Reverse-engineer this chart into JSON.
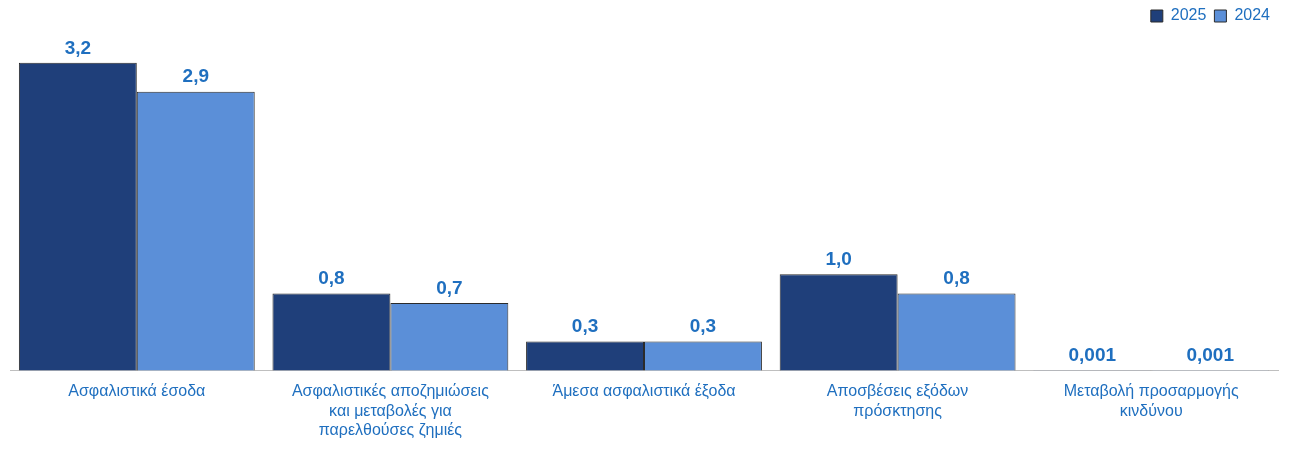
{
  "chart_data": {
    "type": "bar",
    "categories": [
      "Ασφαλιστικά έσοδα",
      "Ασφαλιστικές αποζημιώσεις και μεταβολές για παρελθούσες ζημιές",
      "Άμεσα ασφαλιστικά έξοδα",
      "Αποσβέσεις εξόδων πρόσκτησης",
      "Μεταβολή προσαρμογής κινδύνου"
    ],
    "series": [
      {
        "name": "2025",
        "color": "#1f3f7a",
        "values": [
          3.2,
          0.8,
          0.3,
          1.0,
          0.001
        ],
        "value_labels": [
          "3,2",
          "0,8",
          "0,3",
          "1,0",
          "0,001"
        ]
      },
      {
        "name": "2024",
        "color": "#5b8fd8",
        "values": [
          2.9,
          0.7,
          0.3,
          0.8,
          0.001
        ],
        "value_labels": [
          "2,9",
          "0,7",
          "0,3",
          "0,8",
          "0,001"
        ]
      }
    ],
    "legend": "top right",
    "grid": false
  }
}
